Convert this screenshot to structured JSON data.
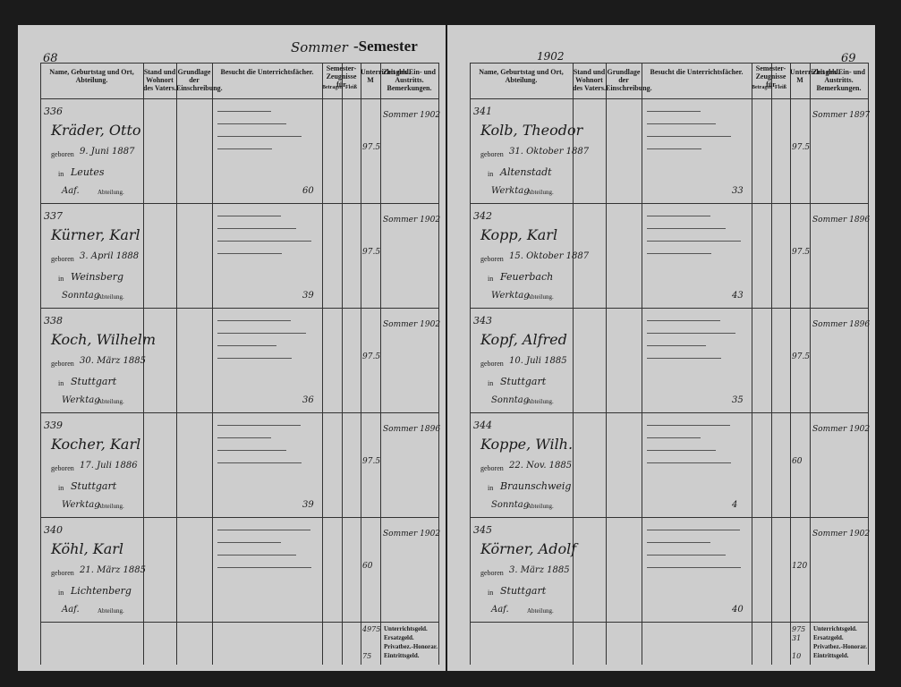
{
  "header": {
    "season": "Sommer",
    "semester": "-Semester",
    "year": "1902"
  },
  "columns": [
    "Name, Geburtstag und Ort, Abteilung.",
    "Stand und Wohnort des Vaters.",
    "Grundlage der Einschreibung.",
    "Besucht die Unterrichtsfächer.",
    "Semester-Zeugnisse für",
    "Betragen",
    "Fleiß",
    "Unterrichtsgeld. M",
    "Zeit des Ein- und Austritts. Bemerkungen."
  ],
  "labels": {
    "born": "geboren",
    "in": "in",
    "department": "Abteilung."
  },
  "footer_labels": [
    "Unterrichtsgeld.",
    "Ersatzgeld.",
    "Privatbez.-Honorar.",
    "Eintrittsgeld."
  ],
  "pages": [
    {
      "number": "68",
      "entries": [
        {
          "no": "336",
          "name": "Kräder, Otto",
          "born": "9. Juni 1887",
          "place": "Leutes",
          "dept": "Aaf.",
          "fee": "97.5",
          "entry": "Sommer 1902",
          "count": "60"
        },
        {
          "no": "337",
          "name": "Kürner, Karl",
          "born": "3. April 1888",
          "place": "Weinsberg",
          "dept": "Sonntag",
          "fee": "97.5",
          "entry": "Sommer 1902",
          "count": "39"
        },
        {
          "no": "338",
          "name": "Koch, Wilhelm",
          "born": "30. März 1885",
          "place": "Stuttgart",
          "dept": "Werktag",
          "fee": "97.5",
          "entry": "Sommer 1902",
          "count": "36"
        },
        {
          "no": "339",
          "name": "Kocher, Karl",
          "born": "17. Juli 1886",
          "place": "Stuttgart",
          "dept": "Werktag",
          "fee": "97.5",
          "entry": "Sommer 1896",
          "count": "39"
        },
        {
          "no": "340",
          "name": "Köhl, Karl",
          "born": "21. März 1885",
          "place": "Lichtenberg",
          "dept": "Aaf.",
          "fee": "60",
          "entry": "Sommer 1902",
          "count": ""
        }
      ],
      "totals": [
        "4975",
        "",
        "",
        "75"
      ]
    },
    {
      "number": "69",
      "entries": [
        {
          "no": "341",
          "name": "Kolb, Theodor",
          "born": "31. Oktober 1887",
          "place": "Altenstadt",
          "dept": "Werktag",
          "fee": "97.5",
          "entry": "Sommer 1897",
          "count": "33"
        },
        {
          "no": "342",
          "name": "Kopp, Karl",
          "born": "15. Oktober 1887",
          "place": "Feuerbach",
          "dept": "Werktag",
          "fee": "97.5",
          "entry": "Sommer 1896",
          "count": "43"
        },
        {
          "no": "343",
          "name": "Kopf, Alfred",
          "born": "10. Juli 1885",
          "place": "Stuttgart",
          "dept": "Sonntag",
          "fee": "97.5",
          "entry": "Sommer 1896",
          "count": "35"
        },
        {
          "no": "344",
          "name": "Koppe, Wilh.",
          "born": "22. Nov. 1885",
          "place": "Braunschweig",
          "dept": "Sonntag",
          "fee": "60",
          "entry": "Sommer 1902",
          "count": "4"
        },
        {
          "no": "345",
          "name": "Körner, Adolf",
          "born": "3. März 1885",
          "place": "Stuttgart",
          "dept": "Aaf.",
          "fee": "120",
          "entry": "Sommer 1902",
          "count": "40"
        }
      ],
      "totals": [
        "975",
        "31",
        "",
        "10"
      ]
    }
  ]
}
